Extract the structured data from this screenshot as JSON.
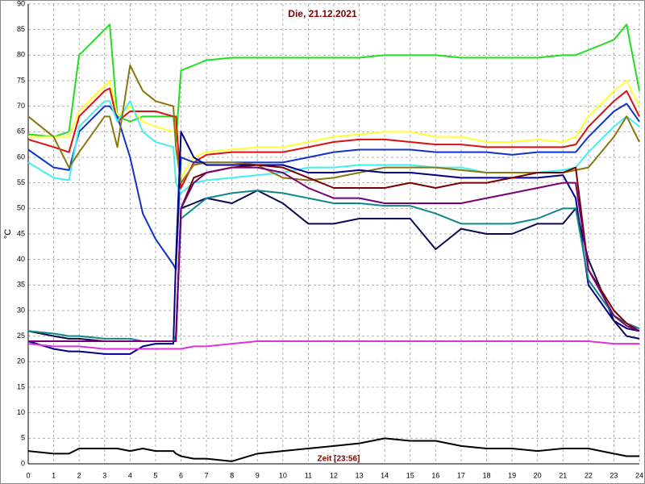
{
  "chart_data": {
    "type": "line",
    "title": "Die, 21.12.2021",
    "y_label": "°C",
    "annotation": "Zeit [23:56]",
    "x": [
      0,
      1,
      1.6,
      2,
      3,
      3.2,
      3.5,
      4,
      4.5,
      5,
      5.7,
      5.8,
      6,
      6.5,
      7,
      8,
      9,
      10,
      11,
      12,
      13,
      14,
      15,
      16,
      17,
      18,
      19,
      20,
      21,
      21.5,
      22,
      23,
      23.5,
      24
    ],
    "xlim": [
      0,
      24
    ],
    "xticks": [
      0,
      1,
      2,
      3,
      4,
      5,
      6,
      7,
      8,
      9,
      10,
      11,
      12,
      13,
      14,
      15,
      16,
      17,
      18,
      19,
      20,
      21,
      22,
      23,
      24
    ],
    "ylim": [
      0,
      90
    ],
    "yticks": [
      0,
      5,
      10,
      15,
      20,
      25,
      30,
      35,
      40,
      45,
      50,
      55,
      60,
      65,
      70,
      75,
      80,
      85,
      90
    ],
    "grid": true,
    "series": [
      {
        "color": "#22dd22",
        "values": [
          64.5,
          64,
          65,
          80,
          85,
          86,
          68,
          67,
          68,
          68,
          68,
          63,
          77,
          78,
          79,
          79.5,
          79.5,
          79.5,
          79.5,
          79.5,
          79.5,
          80,
          80,
          80,
          79.5,
          79.5,
          79.5,
          79.5,
          80,
          80,
          81,
          83,
          86,
          73
        ]
      },
      {
        "color": "#ffff33",
        "values": [
          64,
          64,
          64,
          69,
          74,
          75,
          68,
          70,
          67,
          66,
          65,
          67,
          56,
          60,
          61,
          61.5,
          62,
          62,
          63,
          64,
          64.5,
          65,
          65,
          64,
          64,
          63,
          63,
          63.5,
          63,
          64,
          68,
          73,
          75,
          70
        ]
      },
      {
        "color": "#dd1111",
        "values": [
          63.5,
          62,
          61,
          68,
          73,
          73.5,
          67,
          69,
          69,
          69,
          68,
          68,
          54,
          59,
          60.5,
          61,
          61,
          61,
          62,
          63,
          63.5,
          63.5,
          63,
          62.5,
          62.5,
          62,
          62,
          62,
          62,
          62.5,
          66,
          71,
          73,
          68
        ]
      },
      {
        "color": "#1133cc",
        "values": [
          61.5,
          58,
          57.5,
          65,
          70,
          70,
          68,
          60,
          49,
          44,
          39,
          38,
          60,
          59,
          59,
          59,
          59,
          59,
          60,
          61,
          61.5,
          61.5,
          61.5,
          61,
          61,
          61,
          60.5,
          61,
          61,
          61,
          64,
          69,
          70.5,
          67
        ]
      },
      {
        "color": "#44eeee",
        "values": [
          59,
          56,
          55.5,
          66,
          71,
          71,
          67,
          71,
          65,
          63,
          62,
          55,
          53,
          55,
          55.5,
          56,
          56.5,
          57,
          58,
          58,
          58.5,
          58.5,
          58.5,
          58,
          58,
          57,
          57,
          57,
          57.5,
          58,
          61,
          66,
          68,
          66
        ]
      },
      {
        "color": "#887711",
        "values": [
          68,
          64,
          58,
          61,
          68,
          68,
          62,
          78,
          73,
          71,
          70,
          62,
          55,
          58.5,
          59,
          59,
          58.5,
          56,
          55.5,
          56,
          57,
          58,
          58,
          58,
          57.5,
          57,
          57,
          57,
          57,
          57.5,
          58,
          64,
          68,
          63
        ]
      },
      {
        "color": "#000088",
        "values": [
          24,
          22.5,
          22,
          22,
          21.5,
          21.5,
          21.5,
          21.5,
          23,
          23.5,
          23.5,
          40,
          65,
          60,
          58.5,
          58.5,
          58.5,
          58.5,
          57,
          57,
          57.5,
          57,
          57,
          56.5,
          56,
          56,
          56,
          56,
          56.5,
          52,
          35,
          28,
          26.5,
          26
        ]
      },
      {
        "color": "#0a0a55",
        "values": [
          26,
          25,
          24.5,
          24.5,
          24,
          24,
          24,
          24,
          24,
          24,
          24,
          25,
          50,
          51,
          52,
          51,
          53.5,
          51,
          47,
          47,
          48,
          48,
          48,
          42,
          46,
          45,
          45,
          47,
          47,
          50,
          40,
          28,
          25,
          24.5
        ]
      },
      {
        "color": "#118888",
        "values": [
          26,
          25.5,
          25,
          25,
          24.5,
          24.5,
          24.5,
          24.5,
          24,
          24,
          24,
          25,
          48,
          50,
          52,
          53,
          53.5,
          53,
          52,
          51,
          51,
          50.5,
          50.5,
          49,
          47,
          47,
          47,
          48,
          50,
          50,
          36,
          29,
          27.5,
          26.5
        ]
      },
      {
        "color": "#770000",
        "values": [
          24,
          24,
          24,
          24,
          24,
          24,
          24,
          24,
          24,
          24,
          24,
          24,
          50,
          56,
          57,
          58,
          58.5,
          58,
          56,
          54,
          54,
          54,
          55,
          54,
          55,
          55,
          56,
          57,
          57,
          58,
          38,
          30,
          27.5,
          26
        ]
      },
      {
        "color": "#770077",
        "values": [
          24,
          24,
          24,
          24,
          24,
          24,
          24,
          24,
          24,
          24,
          24,
          24,
          50,
          55,
          57,
          58,
          58,
          57,
          54,
          52,
          52,
          51,
          51,
          51,
          51,
          52,
          53,
          54,
          55,
          55,
          38,
          29,
          27,
          26
        ]
      },
      {
        "color": "#dd33dd",
        "values": [
          23.5,
          23,
          23,
          23,
          22.5,
          22.5,
          22.5,
          22.5,
          22.5,
          22.5,
          22.5,
          22.5,
          22.5,
          23,
          23,
          23.5,
          24,
          24,
          24,
          24,
          24,
          24,
          24,
          24,
          24,
          24,
          24,
          24,
          24,
          24,
          24,
          23.5,
          23.5,
          23.5
        ]
      },
      {
        "color": "#000000",
        "values": [
          2.5,
          2,
          2,
          3,
          3,
          3,
          3,
          2.5,
          3,
          2.5,
          2.5,
          2,
          1.5,
          1,
          1,
          0.5,
          2,
          2.5,
          3,
          3.5,
          4,
          5,
          4.5,
          4.5,
          3.5,
          3,
          3,
          2.5,
          3,
          3,
          3,
          2,
          1.5,
          1.5
        ]
      }
    ]
  }
}
